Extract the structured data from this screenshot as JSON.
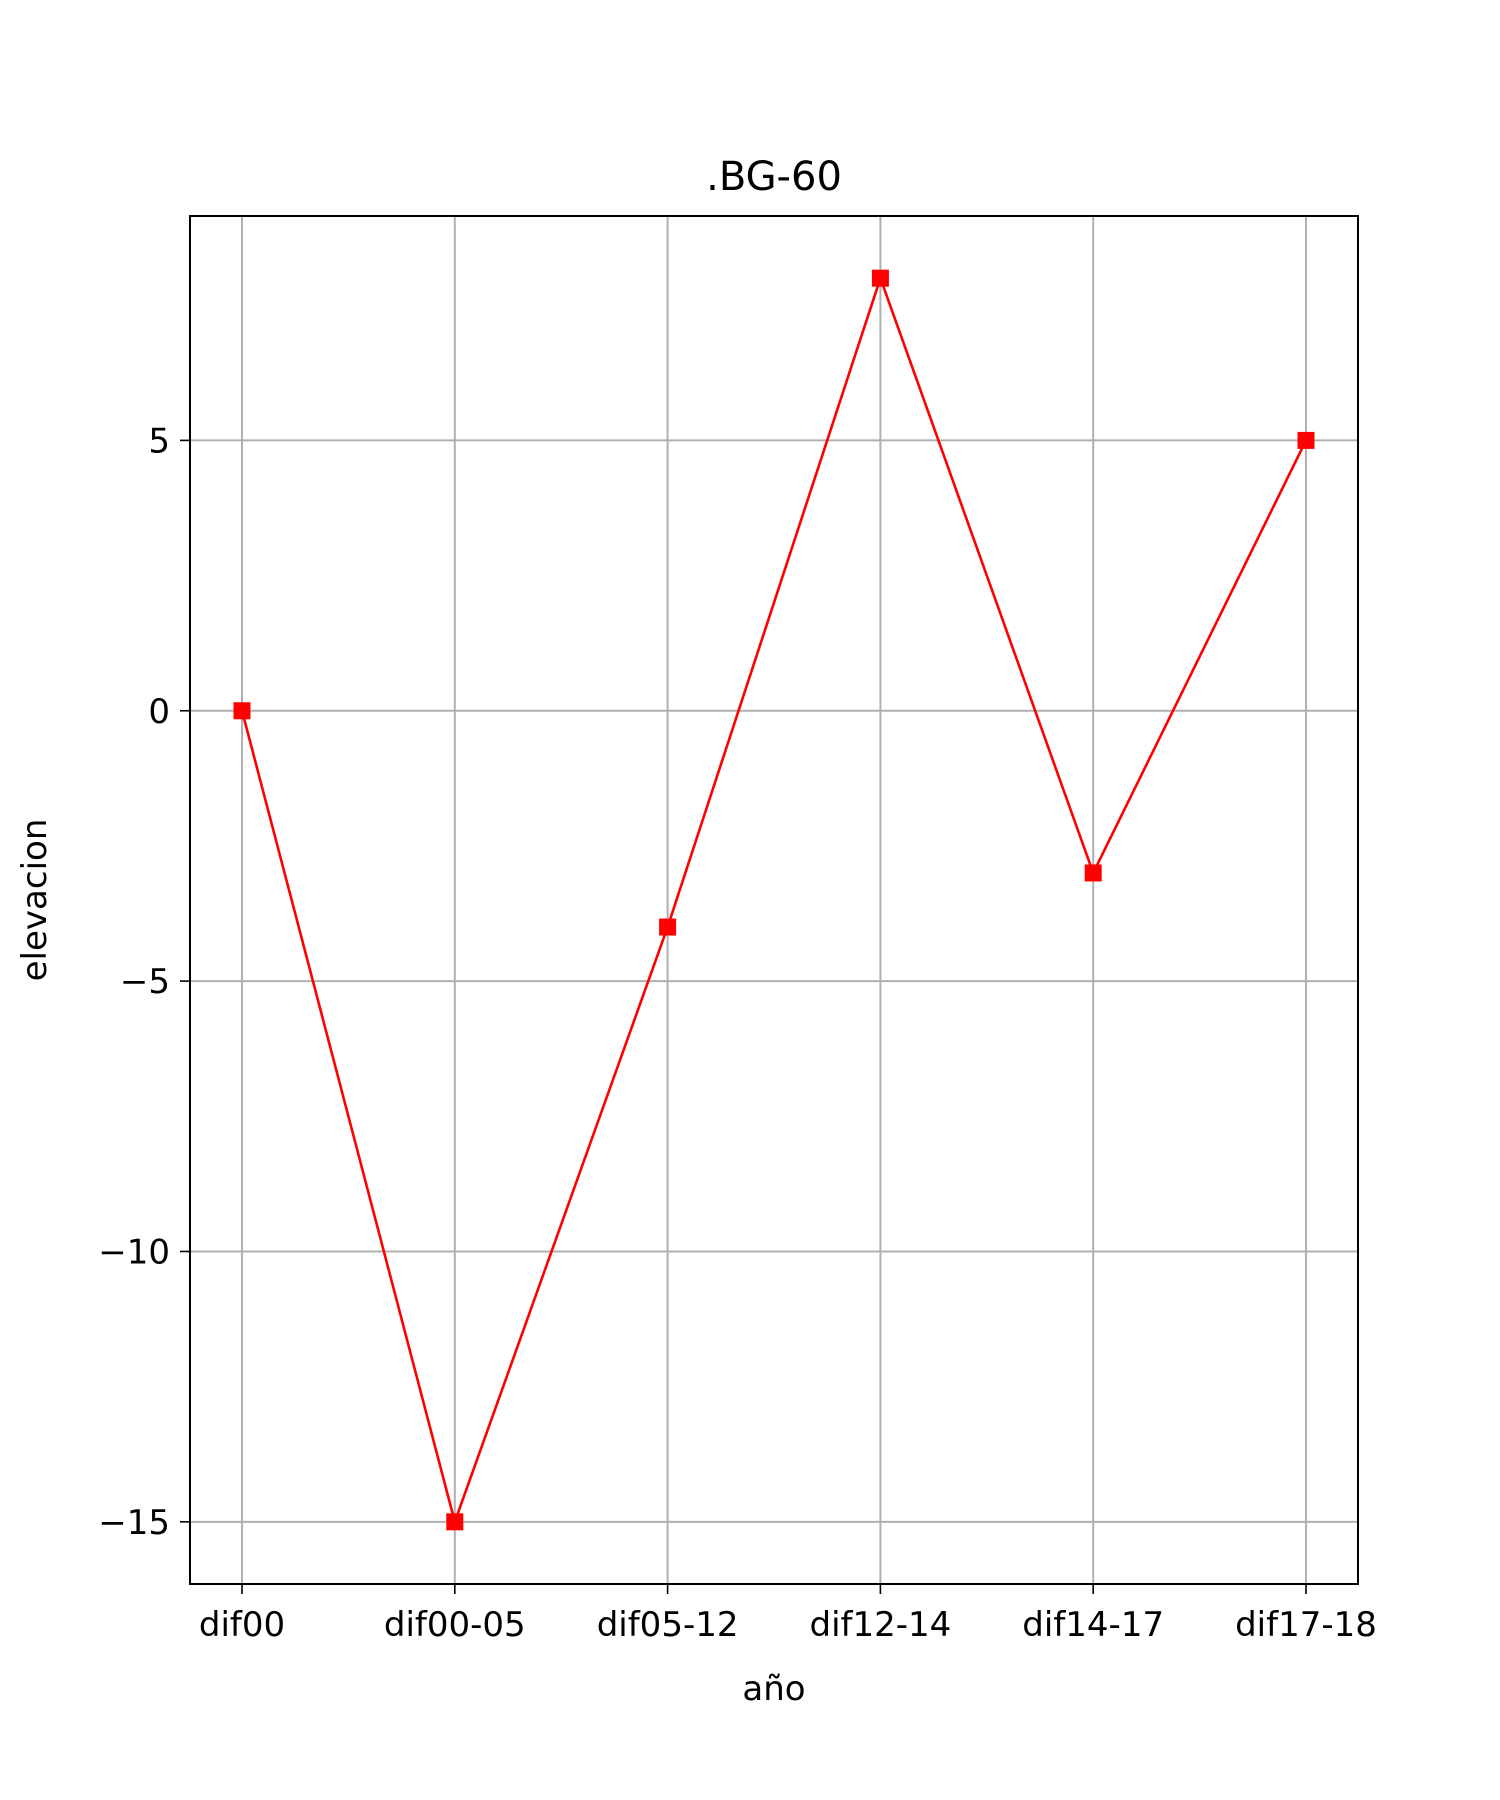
{
  "chart_data": {
    "type": "line",
    "title": ".BG-60",
    "xlabel": "año",
    "ylabel": "elevacion",
    "categories": [
      "dif00",
      "dif00-05",
      "dif05-12",
      "dif12-14",
      "dif14-17",
      "dif17-18"
    ],
    "series": [
      {
        "values": [
          0,
          -15,
          -4,
          8,
          -3,
          5
        ],
        "color": "#ff0000",
        "marker": "square"
      }
    ],
    "yticks": [
      5,
      0,
      -5,
      -10,
      -15
    ],
    "ytick_labels": [
      "5",
      "0",
      "−5",
      "−10",
      "−15"
    ],
    "ylim": [
      -16.15,
      9.15
    ],
    "grid": true,
    "legend": "none"
  }
}
